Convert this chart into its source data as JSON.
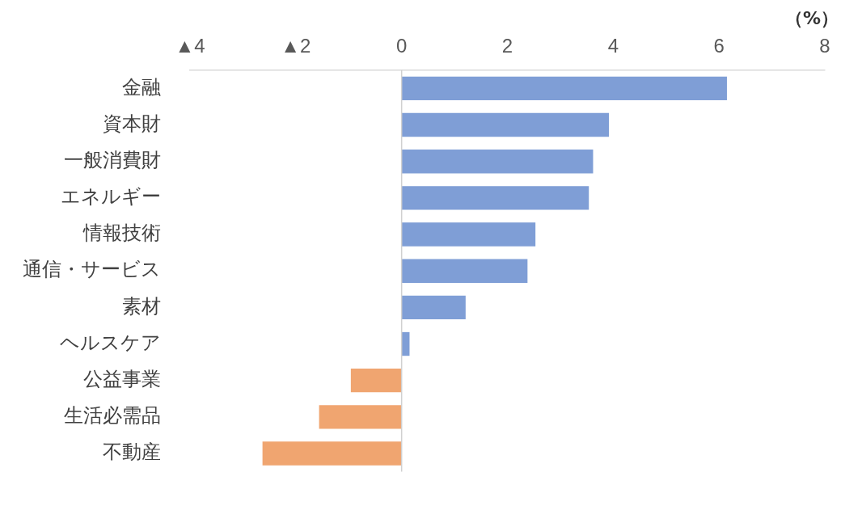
{
  "chart_data": {
    "type": "bar",
    "orientation": "horizontal",
    "xlabel": "（%）",
    "categories": [
      "金融",
      "資本財",
      "一般消費財",
      "エネルギー",
      "情報技術",
      "通信・サービス",
      "素材",
      "ヘルスケア",
      "公益事業",
      "生活必需品",
      "不動産"
    ],
    "values": [
      6.15,
      3.92,
      3.62,
      3.54,
      2.53,
      2.38,
      1.21,
      0.15,
      -0.96,
      -1.56,
      -2.63
    ],
    "colors": [
      "#7f9ed6",
      "#7f9ed6",
      "#7f9ed6",
      "#7f9ed6",
      "#7f9ed6",
      "#7f9ed6",
      "#7f9ed6",
      "#7f9ed6",
      "#f0a570",
      "#f0a570",
      "#f0a570"
    ],
    "xlim": [
      -4,
      8
    ],
    "xticks": [
      {
        "value": -4,
        "label": "▲4"
      },
      {
        "value": -2,
        "label": "▲2"
      },
      0,
      2,
      4,
      6,
      8
    ],
    "ref_lines": [
      {
        "axis": "x",
        "value": 0,
        "color": "#d0d0d0"
      }
    ],
    "grid": false,
    "legend": false
  }
}
